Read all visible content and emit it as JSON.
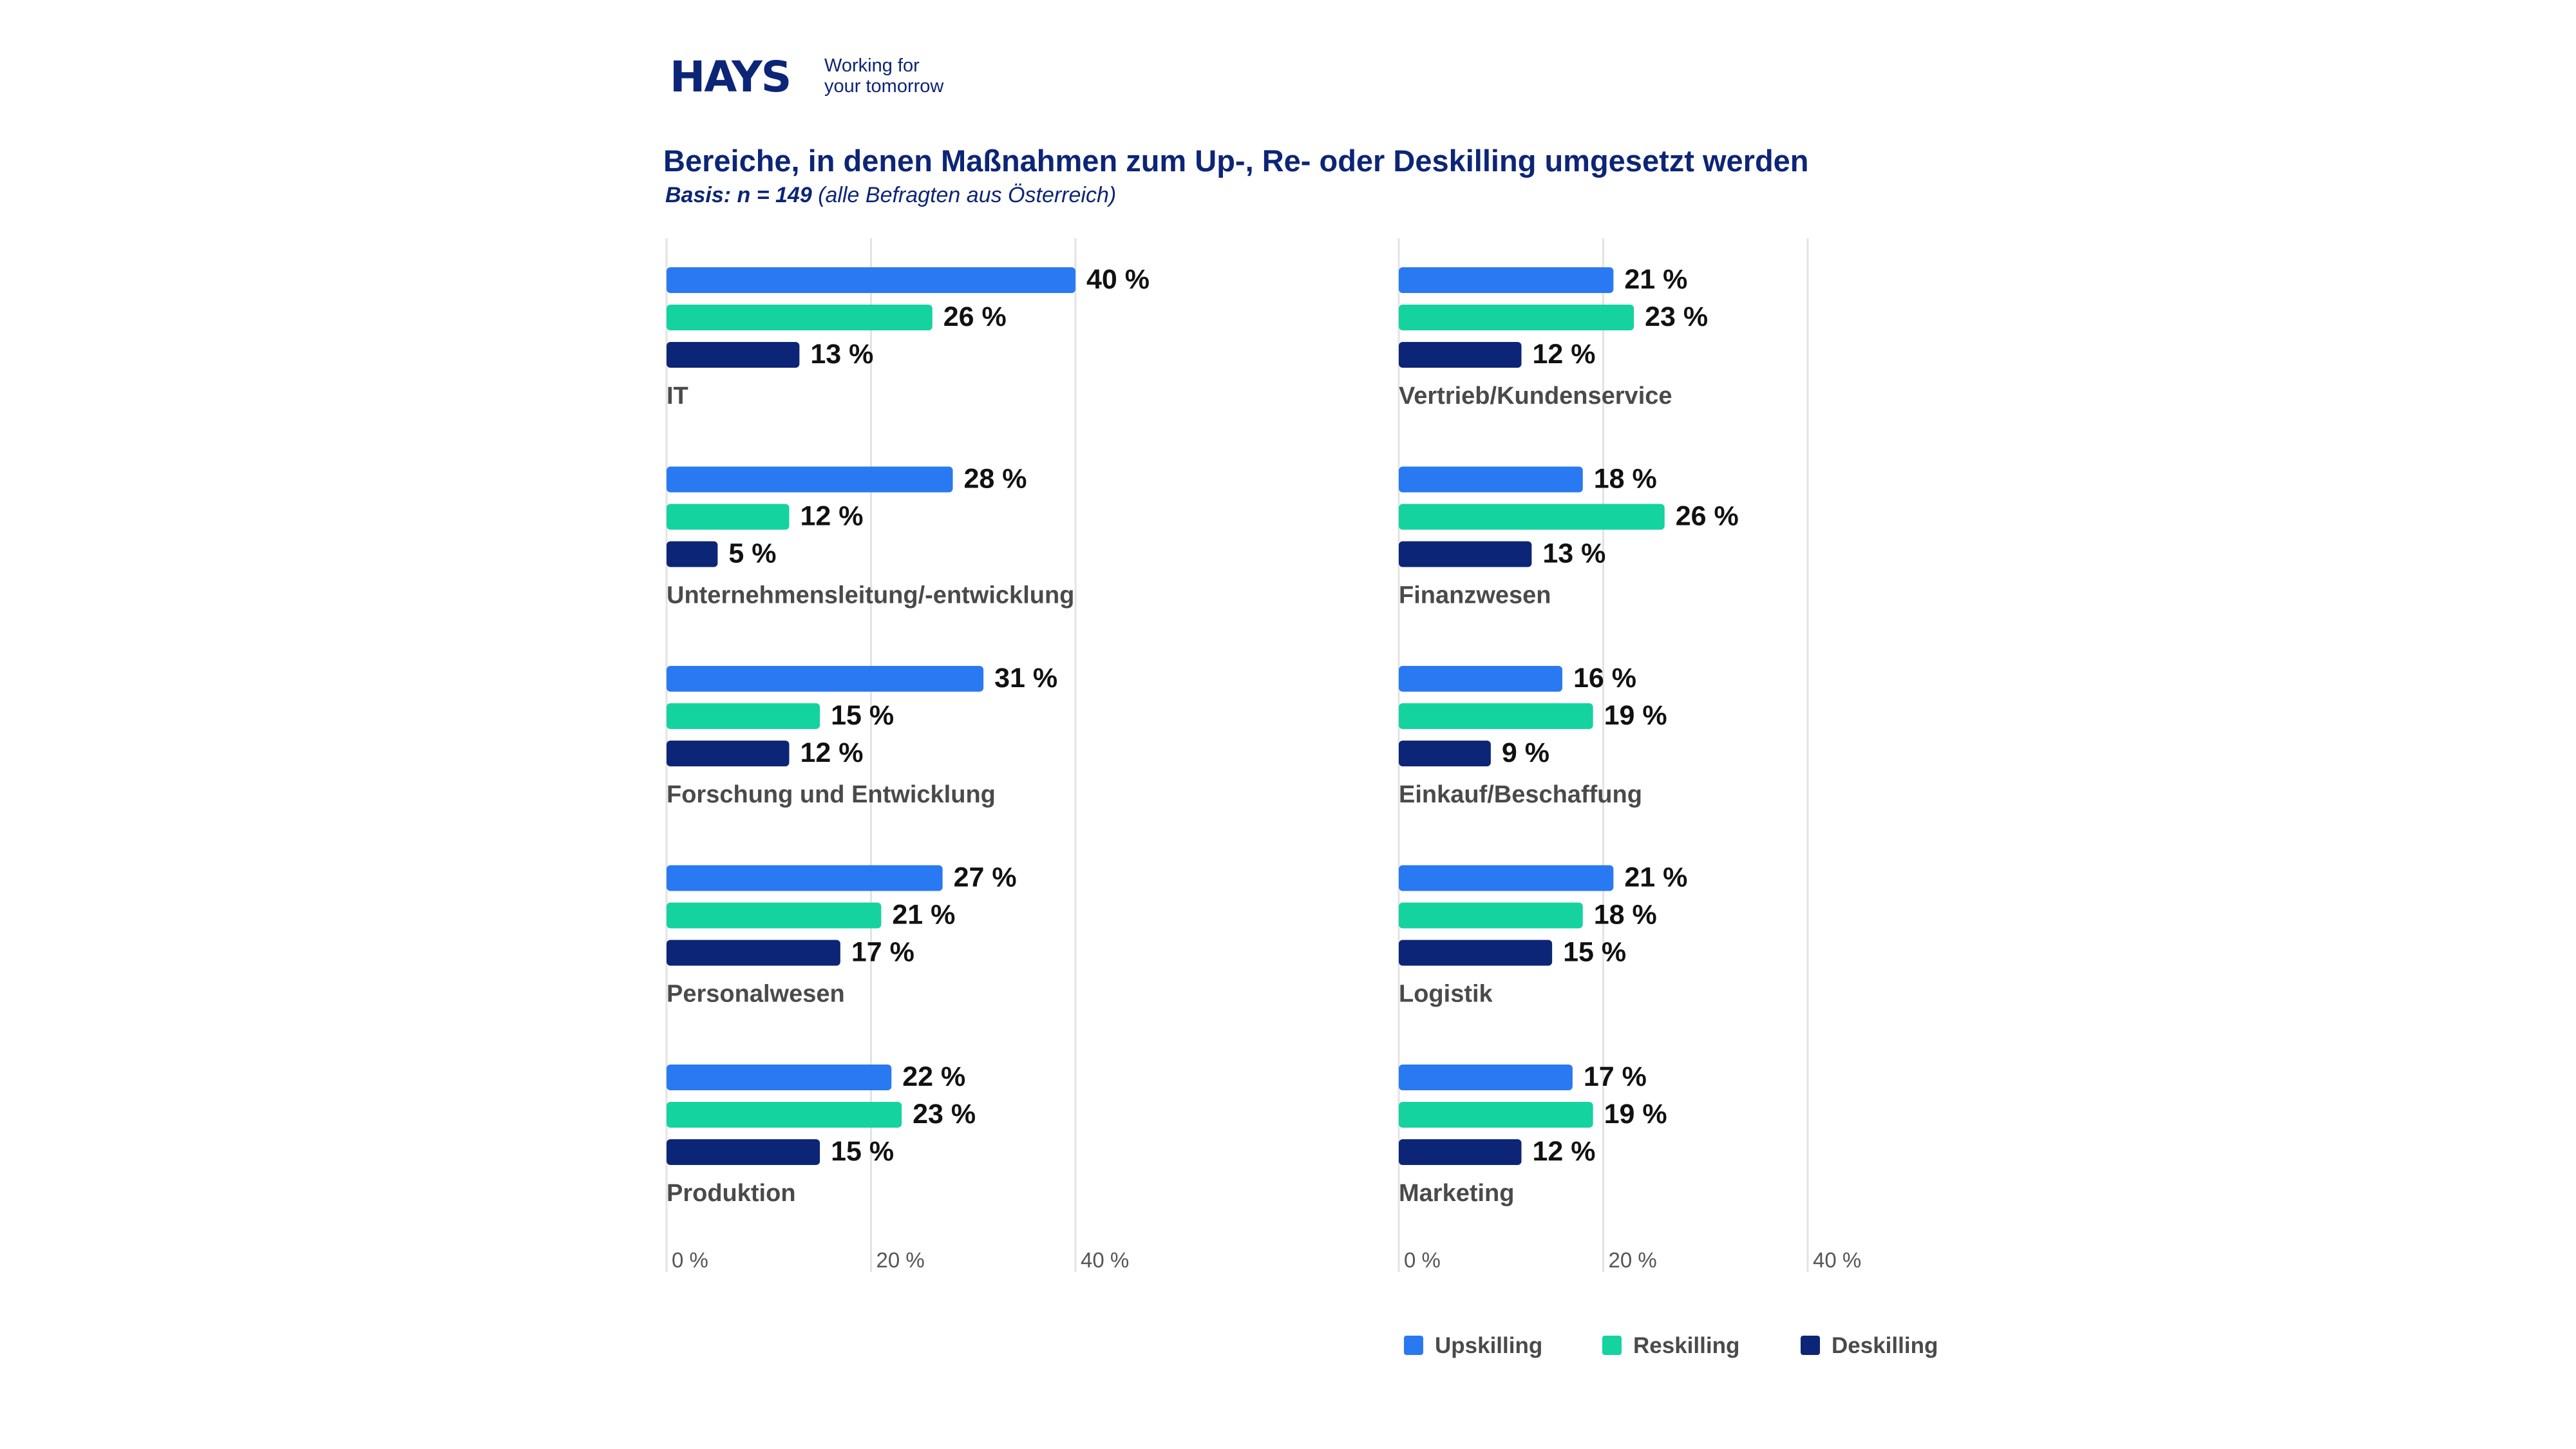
{
  "logo": {
    "wordmark": "HAYS",
    "tagline_line1": "Working for",
    "tagline_line2": "your tomorrow"
  },
  "title": "Bereiche, in denen Maßnahmen zum Up-, Re- oder Deskilling umgesetzt werden",
  "subtitle_basis": "Basis: n = 149",
  "subtitle_note": "(alle Befragten aus Österreich)",
  "colors": {
    "upskilling": "#2979f2",
    "reskilling": "#14d39e",
    "deskilling": "#0c2577",
    "grid": "#e3e3e3",
    "category_label": "#4a4a4a",
    "value_label": "#111111"
  },
  "legend": [
    {
      "name": "Upskilling",
      "color": "#2979f2"
    },
    {
      "name": "Reskilling",
      "color": "#14d39e"
    },
    {
      "name": "Deskilling",
      "color": "#0c2577"
    }
  ],
  "chart_data": [
    {
      "type": "bar",
      "orientation": "horizontal",
      "categories": [
        "IT",
        "Unternehmensleitung/-entwicklung",
        "Forschung und Entwicklung",
        "Personalwesen",
        "Produktion"
      ],
      "series": [
        {
          "name": "Upskilling",
          "values": [
            40,
            28,
            31,
            27,
            22
          ],
          "labels": [
            "40 %",
            "28 %",
            "31 %",
            "27 %",
            "22 %"
          ]
        },
        {
          "name": "Reskilling",
          "values": [
            26,
            12,
            15,
            21,
            23
          ],
          "labels": [
            "26 %",
            "12 %",
            "15 %",
            "21 %",
            "23 %"
          ]
        },
        {
          "name": "Deskilling",
          "values": [
            13,
            5,
            12,
            17,
            15
          ],
          "labels": [
            "13 %",
            "5 %",
            "12 %",
            "17 %",
            "15 %"
          ]
        }
      ],
      "xlim": [
        0,
        40
      ],
      "xticks": [
        0,
        20,
        40
      ],
      "xtick_labels": [
        "0 %",
        "20 %",
        "40 %"
      ],
      "grid": true,
      "unit": "%"
    },
    {
      "type": "bar",
      "orientation": "horizontal",
      "categories": [
        "Vertrieb/Kundenservice",
        "Finanzwesen",
        "Einkauf/Beschaffung",
        "Logistik",
        "Marketing"
      ],
      "series": [
        {
          "name": "Upskilling",
          "values": [
            21,
            18,
            16,
            21,
            17
          ],
          "labels": [
            "21 %",
            "18 %",
            "16 %",
            "21 %",
            "17 %"
          ]
        },
        {
          "name": "Reskilling",
          "values": [
            23,
            26,
            19,
            18,
            19
          ],
          "labels": [
            "23 %",
            "26 %",
            "19 %",
            "18 %",
            "19 %"
          ]
        },
        {
          "name": "Deskilling",
          "values": [
            12,
            13,
            9,
            15,
            12
          ],
          "labels": [
            "12 %",
            "13 %",
            "9 %",
            "15 %",
            "12 %"
          ]
        }
      ],
      "xlim": [
        0,
        40
      ],
      "xticks": [
        0,
        20,
        40
      ],
      "xtick_labels": [
        "0 %",
        "20 %",
        "40 %"
      ],
      "grid": true,
      "unit": "%"
    }
  ]
}
